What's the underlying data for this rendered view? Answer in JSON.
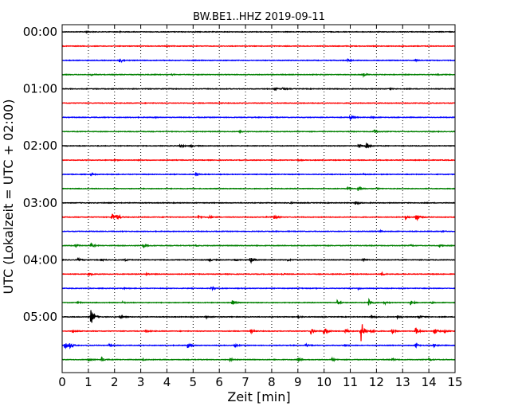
{
  "chart_data": {
    "type": "line",
    "title": "BW.BE1..HHZ 2019-09-11",
    "xlabel": "Zeit  [min]",
    "ylabel": "UTC (Lokalzeit = UTC + 02:00)",
    "xlim": [
      0,
      15
    ],
    "xticks": [
      0,
      1,
      2,
      3,
      4,
      5,
      6,
      7,
      8,
      9,
      10,
      11,
      12,
      13,
      14,
      15
    ],
    "xtick_labels": [
      "0",
      "1",
      "2",
      "3",
      "4",
      "5",
      "6",
      "7",
      "8",
      "9",
      "10",
      "11",
      "12",
      "13",
      "14",
      "15"
    ],
    "ytick_labels": [
      "00:00",
      "01:00",
      "02:00",
      "03:00",
      "04:00",
      "05:00"
    ],
    "ytick_rows": [
      0,
      4,
      8,
      12,
      16,
      20
    ],
    "grid": "vertical-dotted",
    "colors": [
      "#000000",
      "#ff0000",
      "#0000ff",
      "#008000"
    ],
    "traces": [
      {
        "start": "00:00",
        "events": [
          [
            0.9,
            0.8
          ],
          [
            2.2,
            0.5
          ],
          [
            5.0,
            0.4
          ]
        ]
      },
      {
        "start": "00:15",
        "events": [
          [
            4.0,
            0.4
          ]
        ]
      },
      {
        "start": "00:30",
        "events": [
          [
            2.2,
            3.5
          ],
          [
            10.9,
            1.5
          ],
          [
            13.5,
            0.8
          ]
        ]
      },
      {
        "start": "00:45",
        "events": [
          [
            1.1,
            0.8
          ],
          [
            4.2,
            0.6
          ],
          [
            11.5,
            1.8
          ],
          [
            14.3,
            0.6
          ]
        ]
      },
      {
        "start": "01:00",
        "events": [
          [
            8.1,
            1.6
          ],
          [
            8.4,
            1.2
          ],
          [
            12.5,
            0.6
          ]
        ]
      },
      {
        "start": "01:15",
        "events": [
          [
            6.0,
            0.4
          ]
        ]
      },
      {
        "start": "01:30",
        "events": [
          [
            3.5,
            0.5
          ],
          [
            11.0,
            2.0
          ],
          [
            11.8,
            0.8
          ]
        ]
      },
      {
        "start": "01:45",
        "events": [
          [
            6.8,
            0.8
          ],
          [
            11.9,
            2.2
          ]
        ]
      },
      {
        "start": "02:00",
        "events": [
          [
            4.5,
            2.0
          ],
          [
            4.9,
            1.6
          ],
          [
            11.3,
            2.4
          ],
          [
            11.6,
            5.0
          ]
        ]
      },
      {
        "start": "02:15",
        "events": [
          [
            2.0,
            0.5
          ],
          [
            9.0,
            0.5
          ]
        ]
      },
      {
        "start": "02:30",
        "events": [
          [
            1.1,
            1.4
          ],
          [
            5.1,
            2.2
          ],
          [
            11.5,
            0.6
          ]
        ]
      },
      {
        "start": "02:45",
        "events": [
          [
            10.9,
            1.5
          ],
          [
            11.3,
            3.0
          ],
          [
            12.0,
            0.8
          ]
        ]
      },
      {
        "start": "03:00",
        "events": [
          [
            8.7,
            0.9
          ],
          [
            11.2,
            2.6
          ]
        ]
      },
      {
        "start": "03:15",
        "events": [
          [
            1.9,
            5.5
          ],
          [
            2.1,
            3.0
          ],
          [
            5.2,
            1.8
          ],
          [
            5.6,
            1.4
          ],
          [
            7.8,
            1.0
          ],
          [
            8.1,
            2.6
          ],
          [
            13.1,
            2.2
          ],
          [
            13.5,
            5.0
          ]
        ]
      },
      {
        "start": "03:30",
        "events": [
          [
            12.1,
            1.2
          ],
          [
            14.5,
            0.6
          ]
        ]
      },
      {
        "start": "03:45",
        "events": [
          [
            0.5,
            2.0
          ],
          [
            1.1,
            2.2
          ],
          [
            3.1,
            1.8
          ],
          [
            5.1,
            0.8
          ],
          [
            13.3,
            0.8
          ],
          [
            14.4,
            1.6
          ]
        ]
      },
      {
        "start": "04:00",
        "events": [
          [
            0.6,
            1.6
          ],
          [
            1.5,
            1.8
          ],
          [
            2.4,
            1.4
          ],
          [
            5.6,
            2.2
          ],
          [
            6.6,
            1.6
          ],
          [
            7.2,
            5.0
          ],
          [
            8.6,
            1.4
          ],
          [
            11.5,
            1.4
          ]
        ]
      },
      {
        "start": "04:15",
        "events": [
          [
            1.0,
            2.0
          ],
          [
            3.2,
            1.0
          ],
          [
            8.4,
            1.0
          ],
          [
            12.2,
            1.6
          ]
        ]
      },
      {
        "start": "04:30",
        "events": [
          [
            2.3,
            0.8
          ],
          [
            5.7,
            2.0
          ],
          [
            9.0,
            0.8
          ],
          [
            11.3,
            0.8
          ]
        ]
      },
      {
        "start": "04:45",
        "events": [
          [
            0.6,
            1.0
          ],
          [
            2.3,
            1.0
          ],
          [
            6.5,
            3.0
          ],
          [
            10.5,
            2.6
          ],
          [
            11.7,
            4.5
          ],
          [
            12.3,
            2.0
          ],
          [
            13.3,
            3.0
          ],
          [
            14.1,
            1.0
          ]
        ]
      },
      {
        "start": "05:00",
        "events": [
          [
            1.1,
            10.0
          ],
          [
            2.2,
            1.8
          ],
          [
            5.5,
            1.6
          ],
          [
            9.0,
            1.4
          ],
          [
            11.8,
            2.0
          ],
          [
            12.8,
            1.4
          ],
          [
            13.6,
            2.4
          ]
        ]
      },
      {
        "start": "05:15",
        "events": [
          [
            0.4,
            2.0
          ],
          [
            3.2,
            2.0
          ],
          [
            7.2,
            2.4
          ],
          [
            9.5,
            3.6
          ],
          [
            10.0,
            5.5
          ],
          [
            10.8,
            4.0
          ],
          [
            11.4,
            16.0
          ],
          [
            11.8,
            2.8
          ],
          [
            12.6,
            2.6
          ],
          [
            13.5,
            5.0
          ],
          [
            14.2,
            4.0
          ],
          [
            14.6,
            2.0
          ]
        ]
      },
      {
        "start": "05:30",
        "events": [
          [
            0.1,
            4.0
          ],
          [
            0.3,
            3.0
          ],
          [
            1.8,
            1.6
          ],
          [
            4.8,
            4.0
          ],
          [
            6.6,
            1.6
          ],
          [
            9.3,
            1.2
          ],
          [
            10.8,
            1.6
          ],
          [
            13.5,
            2.4
          ],
          [
            14.2,
            1.6
          ]
        ]
      },
      {
        "start": "05:45",
        "events": [
          [
            1.0,
            2.0
          ],
          [
            1.5,
            3.0
          ],
          [
            3.1,
            1.6
          ],
          [
            6.4,
            1.4
          ],
          [
            9.0,
            2.0
          ],
          [
            10.3,
            1.6
          ],
          [
            12.6,
            1.4
          ],
          [
            14.0,
            1.4
          ]
        ]
      }
    ]
  }
}
